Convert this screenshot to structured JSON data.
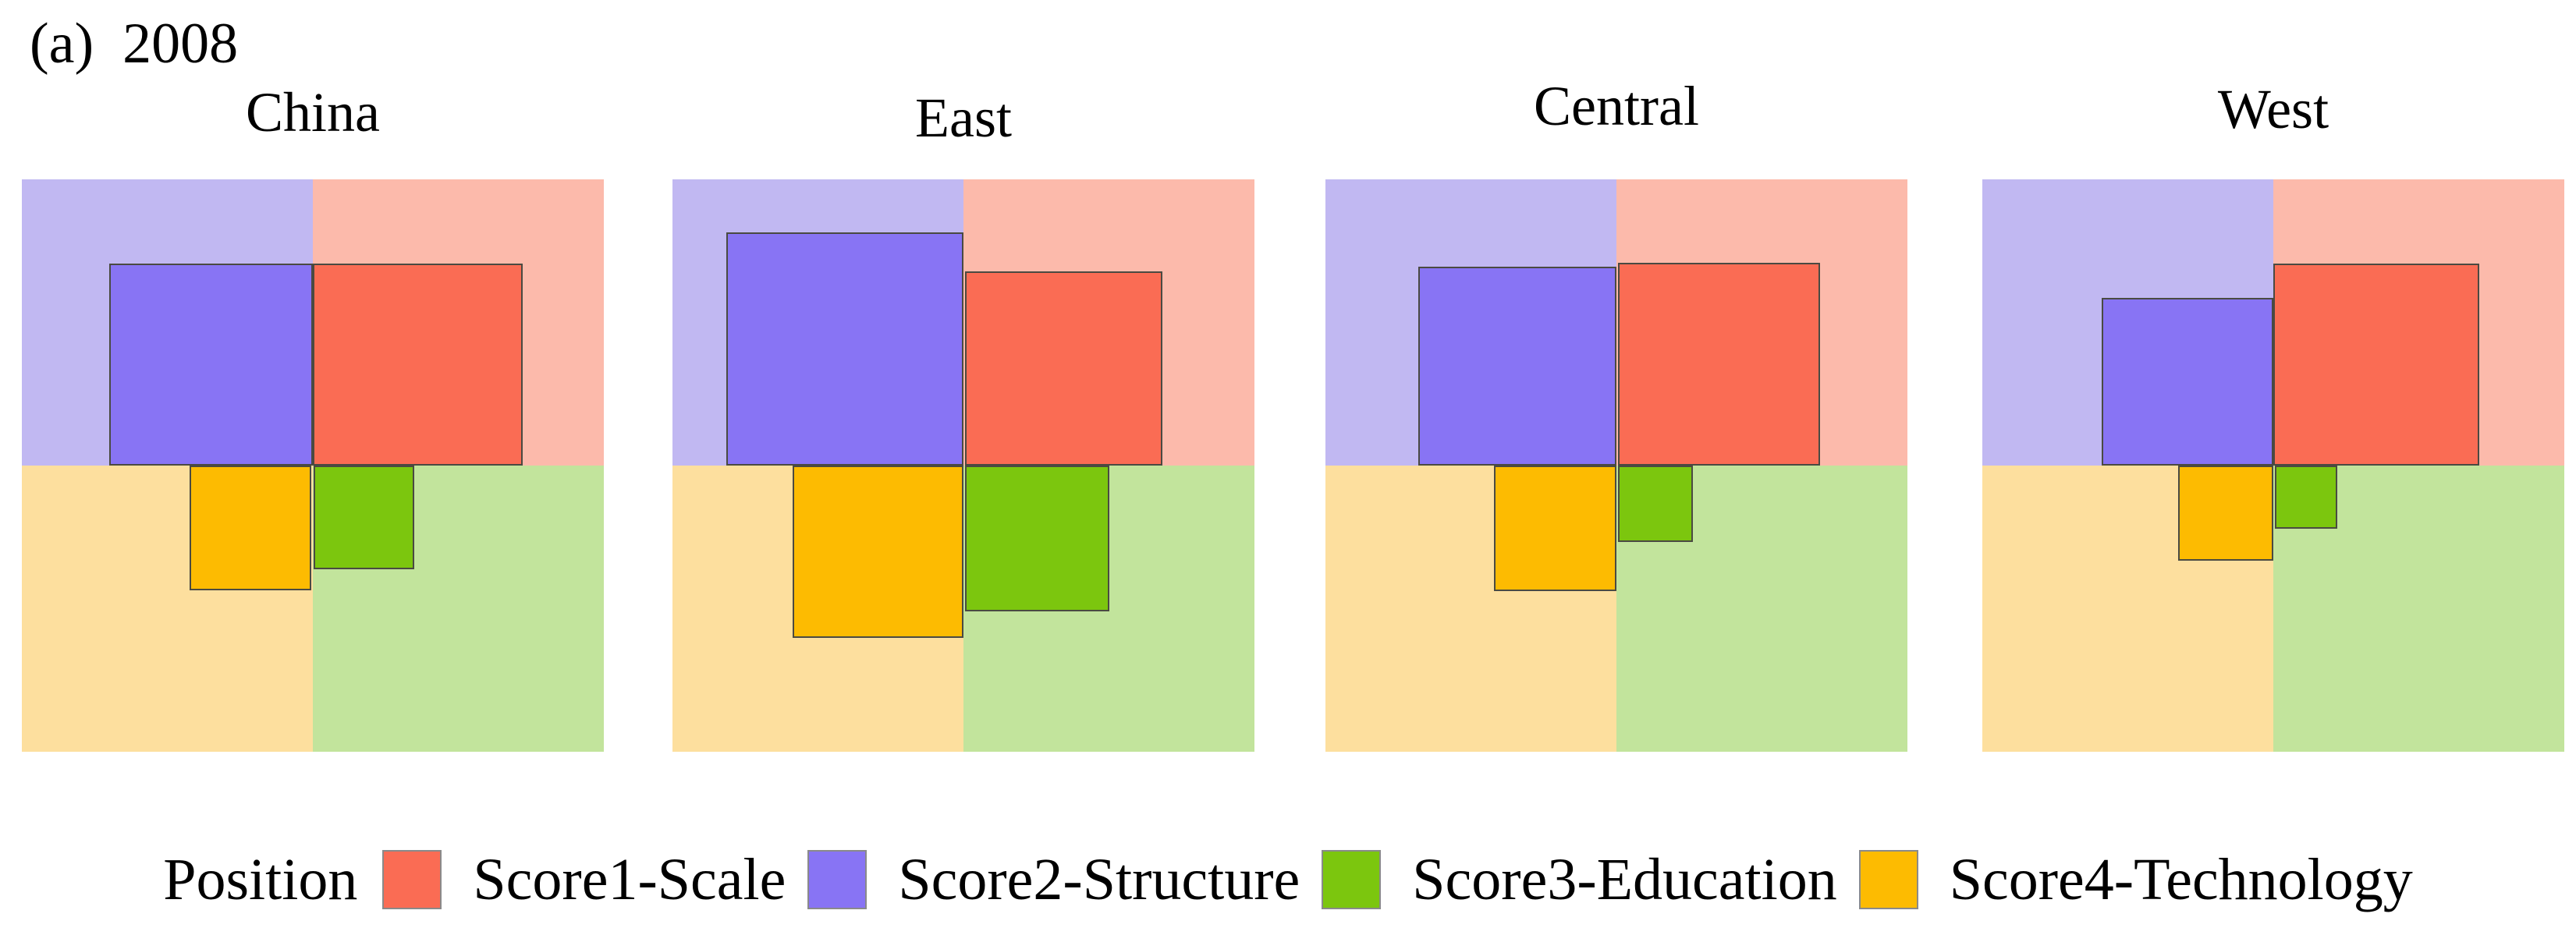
{
  "figure": {
    "panel_label": "(a)",
    "year": "2008",
    "header_text": "(a)  2008"
  },
  "colors": {
    "scale": "#fa6c54",
    "structure": "#8874f4",
    "education": "#7cc60e",
    "technology": "#fdbb01",
    "scale_bg": "#fcbaab",
    "structure_bg": "#c1b8f2",
    "education_bg": "#c2e49c",
    "technology_bg": "#fddf9e",
    "square_border": "#4a4a42",
    "swatch_border": "#8a8a8a"
  },
  "legend": {
    "title": "Position",
    "items": [
      {
        "key": "scale",
        "label": "Score1-Scale"
      },
      {
        "key": "structure",
        "label": "Score2-Structure"
      },
      {
        "key": "education",
        "label": "Score3-Education"
      },
      {
        "key": "technology",
        "label": "Score4-Technology"
      }
    ]
  },
  "chart_data": {
    "type": "quadrant-square-chart",
    "title": "(a) 2008",
    "description": "Four regional panels (China, East, Central, West). Each panel is split into four pastel quadrants (top-left structure, top-right scale, bottom-left technology, bottom-right education). A solid square anchored at the panel center cross in each quadrant encodes the magnitude of that score; square rectangles are given as x/y/w/h fractions of the panel.",
    "quadrant_layout": {
      "top_left": "structure",
      "top_right": "scale",
      "bottom_left": "technology",
      "bottom_right": "education"
    },
    "panels": [
      {
        "title": "China",
        "squares": {
          "structure": {
            "x": 0.15,
            "y": 0.147,
            "w": 0.35,
            "h": 0.353
          },
          "scale": {
            "x": 0.5,
            "y": 0.147,
            "w": 0.361,
            "h": 0.353
          },
          "technology": {
            "x": 0.288,
            "y": 0.5,
            "w": 0.209,
            "h": 0.218
          },
          "education": {
            "x": 0.501,
            "y": 0.5,
            "w": 0.173,
            "h": 0.181
          }
        }
      },
      {
        "title": "East",
        "squares": {
          "structure": {
            "x": 0.093,
            "y": 0.093,
            "w": 0.407,
            "h": 0.407
          },
          "scale": {
            "x": 0.503,
            "y": 0.161,
            "w": 0.339,
            "h": 0.339
          },
          "technology": {
            "x": 0.206,
            "y": 0.5,
            "w": 0.294,
            "h": 0.301
          },
          "education": {
            "x": 0.503,
            "y": 0.5,
            "w": 0.248,
            "h": 0.255
          }
        }
      },
      {
        "title": "Central",
        "squares": {
          "structure": {
            "x": 0.16,
            "y": 0.153,
            "w": 0.34,
            "h": 0.347
          },
          "scale": {
            "x": 0.503,
            "y": 0.146,
            "w": 0.347,
            "h": 0.354
          },
          "technology": {
            "x": 0.29,
            "y": 0.5,
            "w": 0.21,
            "h": 0.219
          },
          "education": {
            "x": 0.503,
            "y": 0.5,
            "w": 0.129,
            "h": 0.134
          }
        }
      },
      {
        "title": "West",
        "squares": {
          "structure": {
            "x": 0.205,
            "y": 0.207,
            "w": 0.295,
            "h": 0.293
          },
          "scale": {
            "x": 0.5,
            "y": 0.147,
            "w": 0.354,
            "h": 0.353
          },
          "technology": {
            "x": 0.337,
            "y": 0.5,
            "w": 0.163,
            "h": 0.166
          },
          "education": {
            "x": 0.503,
            "y": 0.5,
            "w": 0.107,
            "h": 0.11
          }
        }
      }
    ]
  }
}
